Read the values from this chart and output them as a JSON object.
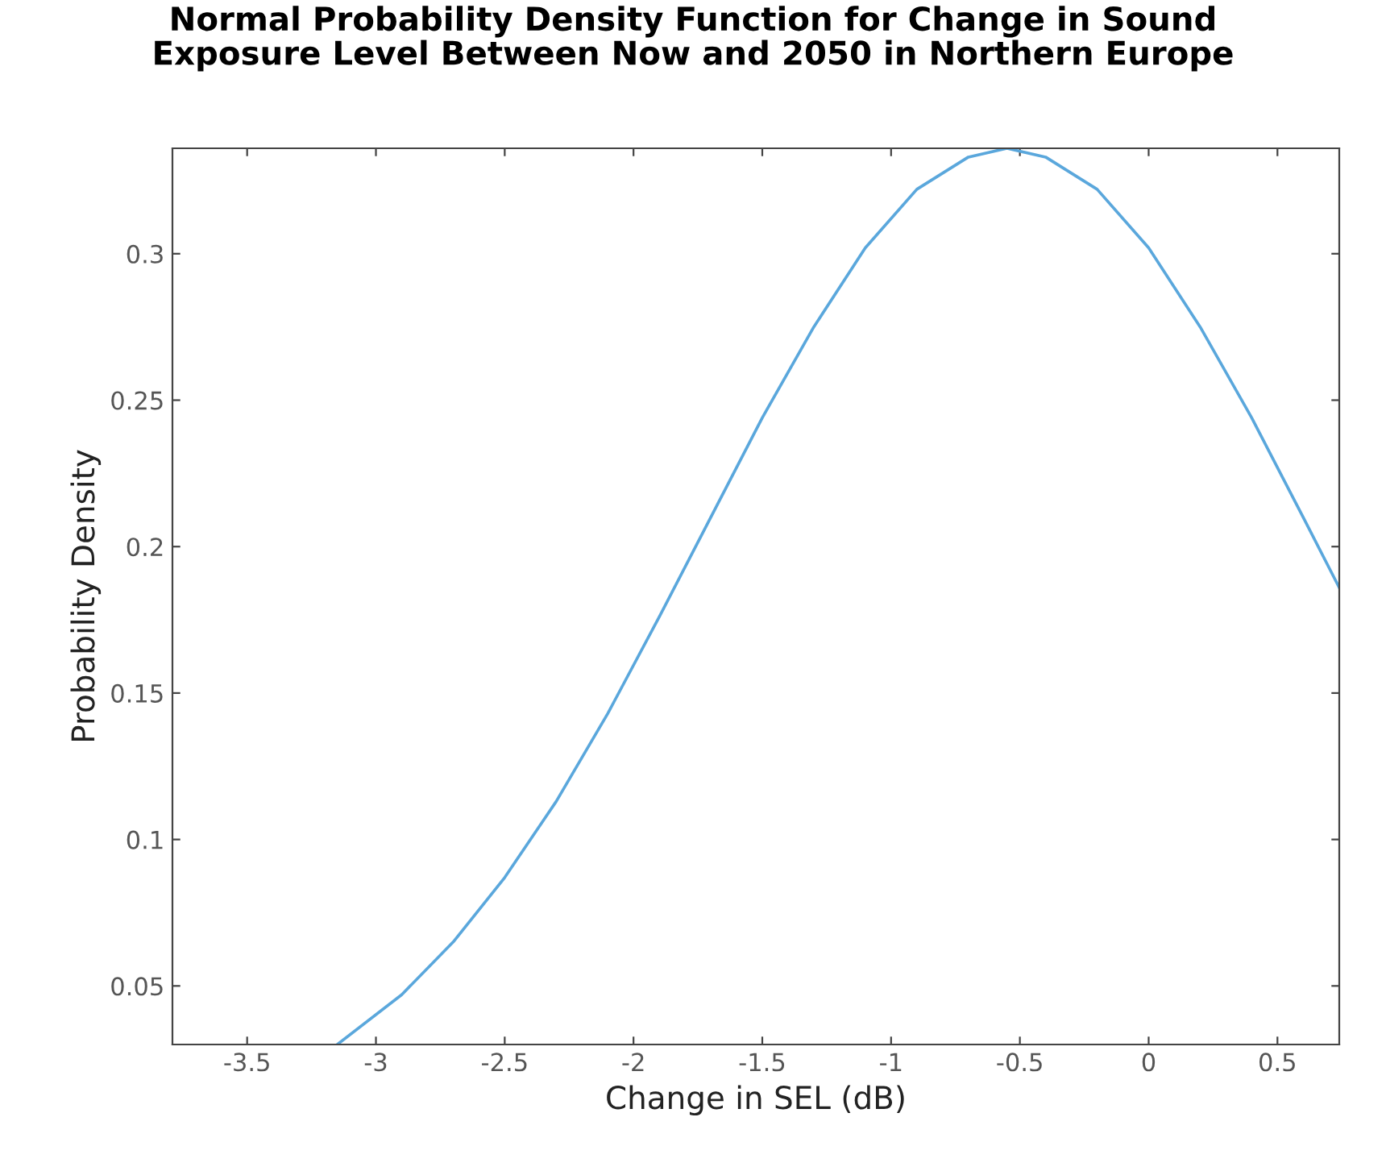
{
  "chart_data": {
    "type": "line",
    "title": "Normal Probability Density Function for Change in Sound\nExposure Level Between Now and 2050 in Northern Europe",
    "xlabel": "Change in SEL (dB)",
    "ylabel": "Probability Density",
    "x": [
      -3.15,
      -2.9,
      -2.7,
      -2.5,
      -2.3,
      -2.1,
      -1.9,
      -1.7,
      -1.5,
      -1.3,
      -1.1,
      -0.9,
      -0.7,
      -0.55,
      -0.4,
      -0.2,
      0,
      0.2,
      0.4,
      0.6,
      0.74
    ],
    "series": [
      {
        "color": "#5aa7dc",
        "values": [
          0.03,
          0.047,
          0.065,
          0.087,
          0.113,
          0.143,
          0.176,
          0.21,
          0.244,
          0.275,
          0.302,
          0.322,
          0.333,
          0.336,
          0.333,
          0.322,
          0.302,
          0.275,
          0.244,
          0.21,
          0.186
        ]
      }
    ],
    "xlim": [
      -3.79,
      0.74
    ],
    "ylim": [
      0.03,
      0.336
    ],
    "xticks": [
      -3.5,
      -3,
      -2.5,
      -2,
      -1.5,
      -1,
      -0.5,
      0,
      0.5
    ],
    "yticks": [
      0.05,
      0.1,
      0.15,
      0.2,
      0.25,
      0.3
    ],
    "grid": false,
    "legend": false,
    "marker": "none",
    "line_style": "solid"
  }
}
